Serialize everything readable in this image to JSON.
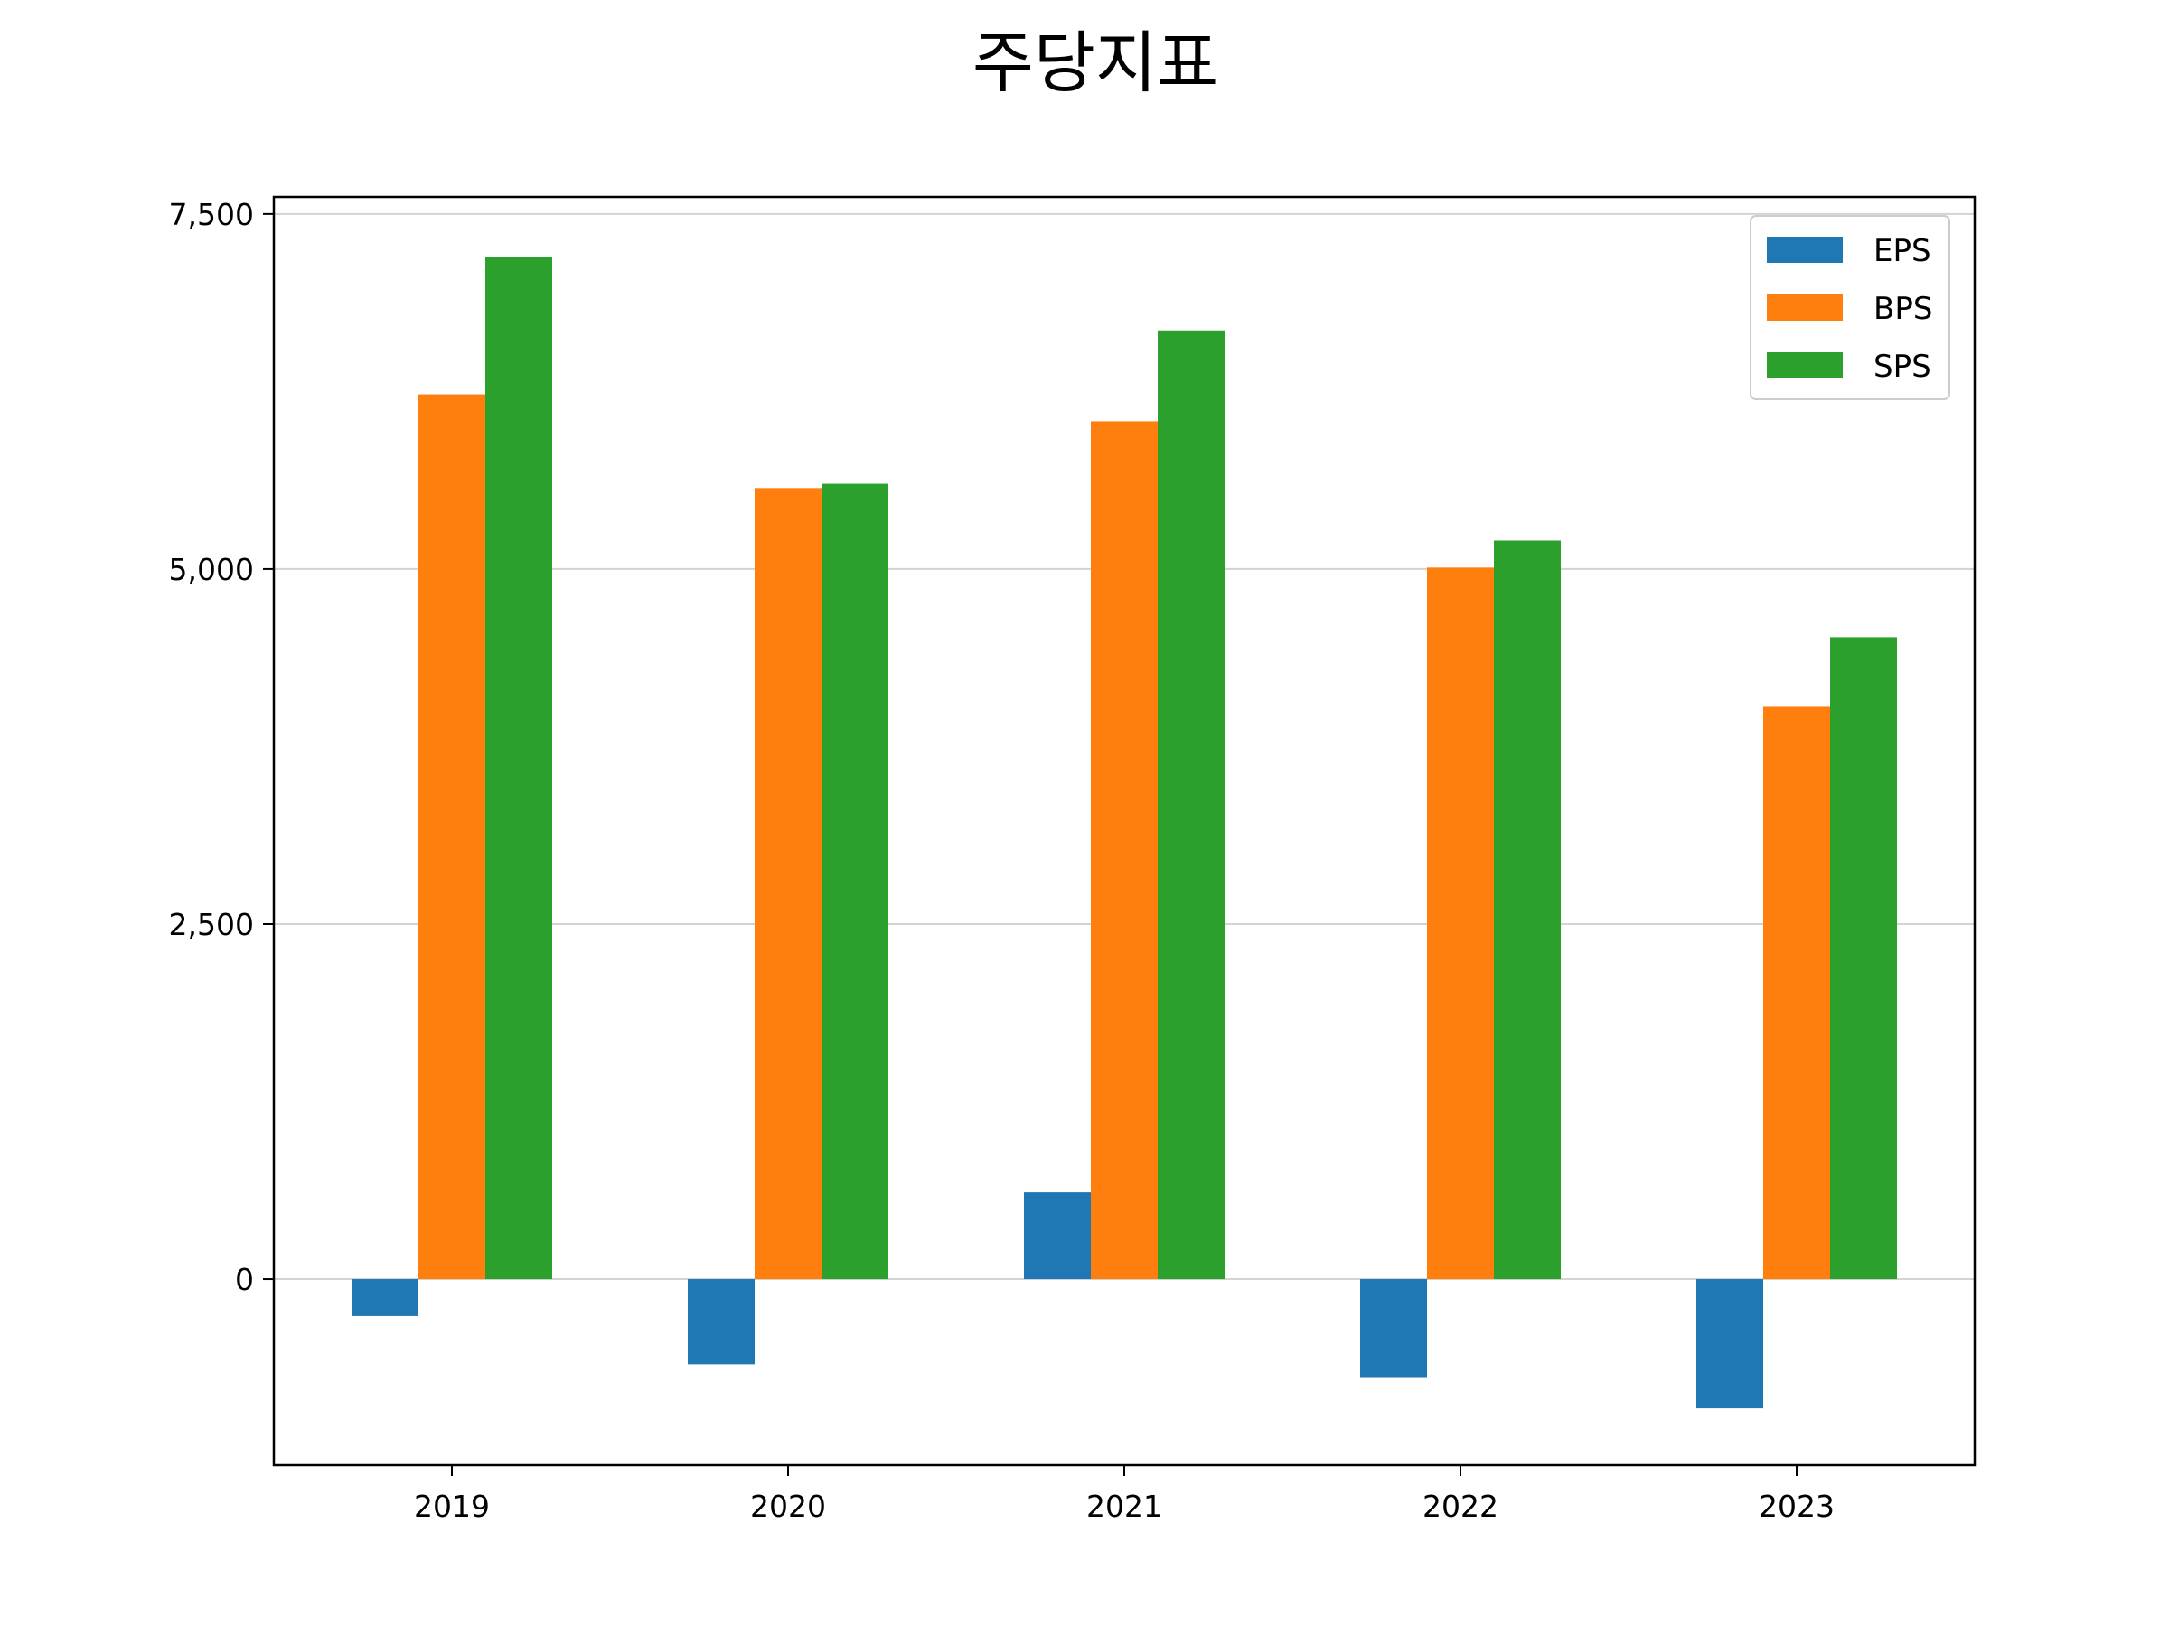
{
  "chart_data": {
    "type": "bar",
    "title": "주당지표",
    "xlabel": "",
    "ylabel": "",
    "categories": [
      "2019",
      "2020",
      "2021",
      "2022",
      "2023"
    ],
    "series": [
      {
        "name": "EPS",
        "color": "#1f77b4",
        "values": [
          -260,
          -600,
          610,
          -690,
          -910
        ]
      },
      {
        "name": "BPS",
        "color": "#ff7f0e",
        "values": [
          6230,
          5570,
          6040,
          5010,
          4030
        ]
      },
      {
        "name": "SPS",
        "color": "#2ca02c",
        "values": [
          7200,
          5600,
          6680,
          5200,
          4520
        ]
      }
    ],
    "ylim": [
      -1310,
      7620
    ],
    "yticks": [
      0,
      2500,
      5000,
      7500
    ],
    "ytick_labels": [
      "0",
      "2,500",
      "5,000",
      "7,500"
    ],
    "grid": "horizontal",
    "legend_position": "top-right"
  }
}
